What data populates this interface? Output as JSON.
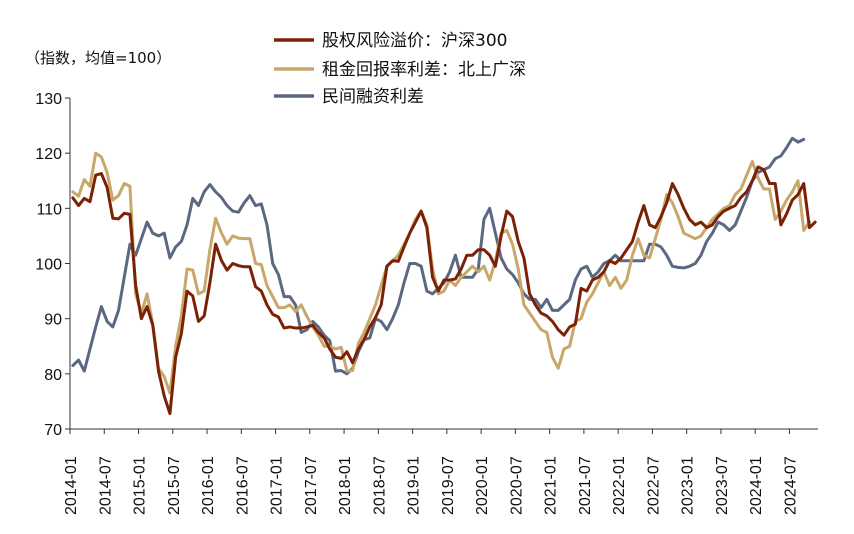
{
  "chart_data": {
    "type": "line",
    "unit_label": "（指数，均值=100）",
    "ylim": [
      70,
      130
    ],
    "y_ticks": [
      70,
      80,
      90,
      100,
      110,
      120,
      130
    ],
    "x_ticks": [
      "2014-01",
      "2014-07",
      "2015-01",
      "2015-07",
      "2016-01",
      "2016-07",
      "2017-01",
      "2017-07",
      "2018-01",
      "2018-07",
      "2019-01",
      "2019-07",
      "2020-01",
      "2020-07",
      "2021-01",
      "2021-07",
      "2022-01",
      "2022-07",
      "2023-01",
      "2023-07",
      "2024-01",
      "2024-07"
    ],
    "x_start": "2014-01",
    "grid": false,
    "legend_position": "top-center",
    "series": [
      {
        "name": "股权风险溢价：沪深300",
        "color": "#7b2106",
        "values": [
          111.9,
          110.5,
          111.8,
          111.2,
          116,
          116.3,
          113.8,
          108.2,
          108.1,
          109.1,
          108.9,
          96,
          90,
          92.2,
          88.8,
          80.5,
          76,
          72.8,
          83,
          87.3,
          95,
          94.1,
          89.5,
          90.5,
          96.5,
          103.5,
          100.6,
          98.8,
          100,
          99.6,
          99.4,
          99.4,
          95.8,
          95,
          92.5,
          90.8,
          90.3,
          88.3,
          88.5,
          88.3,
          88.3,
          88.5,
          88.8,
          87.5,
          86.5,
          84.5,
          83,
          82.8,
          84,
          82,
          84.5,
          86.2,
          88.5,
          90.2,
          92.5,
          99.5,
          100.5,
          100.4,
          103,
          105.5,
          107.5,
          109.5,
          106.5,
          97.5,
          95,
          97,
          97,
          97.2,
          99,
          101.5,
          101.5,
          102.5,
          102.5,
          101.5,
          99.5,
          105,
          109.5,
          108.5,
          104,
          101,
          94.5,
          92.5,
          91,
          90.5,
          89.5,
          88,
          87,
          88.5,
          89,
          95.5,
          95,
          97,
          97.5,
          98.5,
          100.5,
          100,
          101,
          102.5,
          104,
          107.5,
          110.5,
          107,
          106.5,
          108.5,
          111,
          114.5,
          112.5,
          110,
          108,
          107,
          107.5,
          106.5,
          107,
          108.5,
          109.5,
          110,
          110.5,
          112,
          113,
          115,
          117.5,
          117,
          114.5,
          114.5,
          107,
          109,
          111.5,
          112.5,
          114.5,
          106.5,
          107.5
        ]
      },
      {
        "name": "租金回报率利差：北上广深",
        "color": "#c8a86a",
        "values": [
          113,
          112.2,
          115.2,
          114,
          120,
          119.3,
          116.5,
          111.5,
          112.3,
          114.5,
          114,
          94.5,
          91,
          94.5,
          89,
          81,
          79.5,
          76.5,
          85,
          90.5,
          99,
          98.8,
          94.5,
          95,
          102.5,
          108.2,
          105.6,
          103.5,
          105,
          104.6,
          104.5,
          104.5,
          100,
          99.8,
          96,
          94,
          92,
          92,
          92.5,
          91.3,
          92.5,
          90.4,
          88.5,
          87,
          85,
          85,
          84.5,
          84.8,
          80.5,
          80.6,
          85.5,
          87.5,
          90,
          92.5,
          96,
          99.5,
          100.5,
          101.5,
          103.5,
          105.5,
          108,
          109.5,
          107,
          99,
          94.5,
          95,
          97,
          96,
          97.5,
          98.5,
          99.5,
          98.5,
          99.5,
          97,
          100.5,
          105.5,
          106,
          103.5,
          99,
          92.5,
          91,
          89.5,
          88,
          87.5,
          83,
          81,
          84.5,
          85,
          89.5,
          90,
          93,
          94.5,
          96.5,
          98.5,
          96,
          97.5,
          95.5,
          97,
          101.5,
          104.5,
          101.5,
          101,
          104.5,
          108,
          112.5,
          111,
          108.5,
          105.5,
          105,
          104.5,
          105,
          106.5,
          108,
          109,
          110,
          110.5,
          112.5,
          113.5,
          116,
          118.5,
          115.5,
          113.5,
          113.5,
          108,
          109.5,
          111.5,
          113,
          115,
          106,
          107.5
        ]
      },
      {
        "name": "民间融资利差",
        "color": "#5b6882",
        "values": [
          81.5,
          82.5,
          80.5,
          84.5,
          88.5,
          92.2,
          89.5,
          88.5,
          91.5,
          97.5,
          103.5,
          101.5,
          104.5,
          107.5,
          105.5,
          105,
          105.5,
          101,
          103,
          104,
          107,
          111.8,
          110.5,
          113,
          114.3,
          113,
          112,
          110.5,
          109.5,
          109.3,
          111,
          112.3,
          110.5,
          110.8,
          107,
          100,
          98,
          94,
          94,
          92.5,
          87.5,
          88,
          89.5,
          88.5,
          87,
          86,
          80.5,
          80.6,
          80,
          81,
          84,
          86.2,
          86.5,
          90,
          89.5,
          88,
          90,
          92.5,
          96.5,
          100,
          100,
          99.5,
          95,
          94.5,
          95.5,
          96.5,
          98.5,
          101.5,
          97.5,
          97.5,
          97.5,
          99,
          108,
          110,
          105.5,
          101,
          99,
          98,
          96.5,
          94.5,
          93.5,
          93.5,
          92,
          93.5,
          91.5,
          91.5,
          92.5,
          93.5,
          97,
          99,
          99.5,
          97.5,
          98.5,
          100,
          100.5,
          101.5,
          100.5,
          100.5,
          100.5,
          100.5,
          100.5,
          103.5,
          103.5,
          103,
          101.5,
          99.5,
          99.3,
          99.2,
          99.5,
          100,
          101.5,
          104,
          105.5,
          107.5,
          107,
          106,
          107,
          109.5,
          112,
          115,
          116.5,
          117,
          117.5,
          119,
          119.5,
          121,
          122.7,
          122,
          122.5
        ]
      }
    ]
  }
}
